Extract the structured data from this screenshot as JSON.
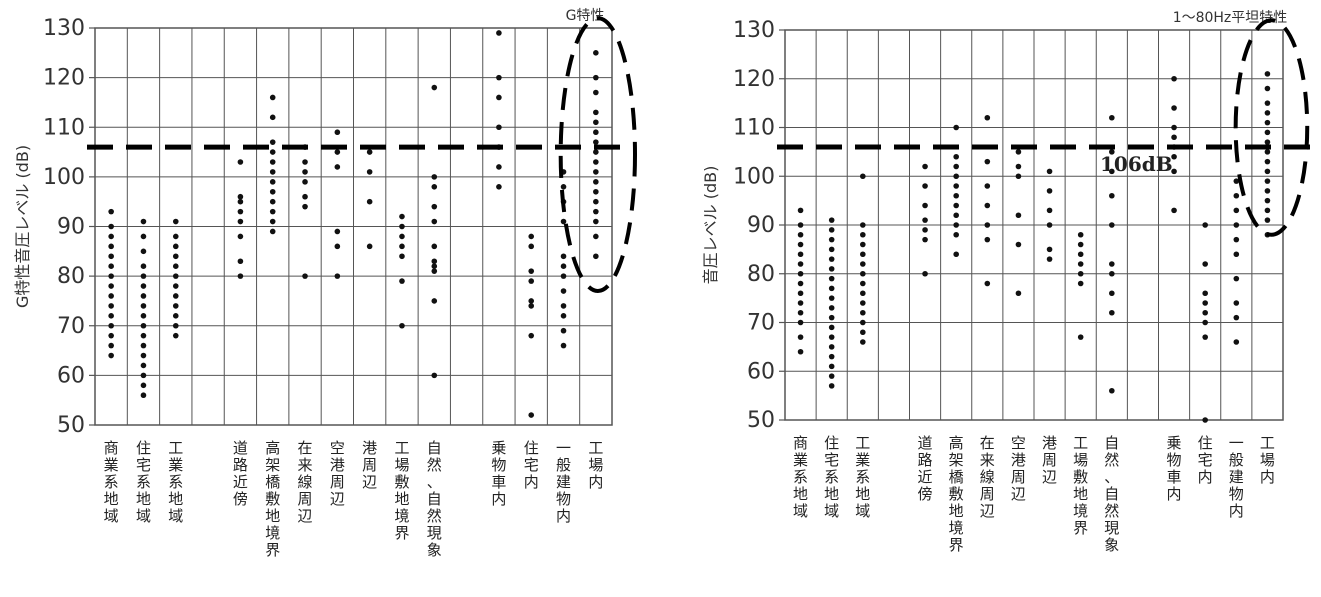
{
  "threshold_value": 106,
  "threshold_label": "106dB",
  "colors": {
    "grid": "#555555",
    "dot": "#111111",
    "dash": "#000000"
  },
  "chart_data": [
    {
      "type": "scatter",
      "title": "G特性",
      "ylabel": "G特性音圧レベル (dB)",
      "ylim": [
        50,
        130
      ],
      "yticks": [
        50,
        60,
        70,
        80,
        90,
        100,
        110,
        120,
        130
      ],
      "grid": true,
      "highlight_category": "工場内",
      "categories": [
        "商業系地域",
        "住宅系地域",
        "工業系地域",
        "",
        "道路近傍",
        "高架橋敷地境界",
        "在来線周辺",
        "空港周辺",
        "港周辺",
        "工場敷地境界",
        "自然、自然現象",
        "",
        "乗物車内",
        "住宅内",
        "一般建物内",
        "工場内"
      ],
      "points": [
        [
          64,
          66,
          68,
          70,
          72,
          74,
          76,
          78,
          80,
          82,
          84,
          86,
          88,
          90,
          93
        ],
        [
          56,
          58,
          60,
          62,
          64,
          66,
          68,
          70,
          72,
          74,
          76,
          78,
          80,
          82,
          85,
          88,
          91
        ],
        [
          68,
          70,
          72,
          74,
          76,
          78,
          80,
          82,
          84,
          86,
          88,
          91
        ],
        [],
        [
          80,
          83,
          88,
          91,
          93,
          95,
          96,
          103
        ],
        [
          89,
          91,
          93,
          95,
          97,
          99,
          101,
          103,
          105,
          107,
          112,
          116
        ],
        [
          80,
          94,
          96,
          99,
          101,
          103,
          106
        ],
        [
          80,
          86,
          89,
          102,
          105,
          109
        ],
        [
          86,
          95,
          101,
          105
        ],
        [
          70,
          79,
          84,
          86,
          88,
          90,
          92
        ],
        [
          60,
          75,
          81,
          82,
          83,
          86,
          91,
          94,
          98,
          100,
          118
        ],
        [],
        [
          98,
          102,
          106,
          110,
          116,
          120,
          129
        ],
        [
          52,
          68,
          74,
          75,
          79,
          81,
          86,
          88
        ],
        [
          66,
          69,
          72,
          74,
          77,
          80,
          82,
          84,
          91,
          95,
          98,
          101
        ],
        [
          84,
          88,
          91,
          93,
          95,
          97,
          99,
          101,
          103,
          105,
          107,
          109,
          111,
          113,
          117,
          120,
          125
        ]
      ]
    },
    {
      "type": "scatter",
      "title": "1～80Hz平坦特性",
      "ylabel": "音圧レベル (dB)",
      "ylim": [
        50,
        130
      ],
      "yticks": [
        50,
        60,
        70,
        80,
        90,
        100,
        110,
        120,
        130
      ],
      "grid": true,
      "highlight_category": "工場内",
      "categories": [
        "商業系地域",
        "住宅系地域",
        "工業系地域",
        "",
        "道路近傍",
        "高架橋敷地境界",
        "在来線周辺",
        "空港周辺",
        "港周辺",
        "工場敷地境界",
        "自然、自然現象",
        "",
        "乗物車内",
        "住宅内",
        "一般建物内",
        "工場内"
      ],
      "points": [
        [
          64,
          67,
          70,
          72,
          74,
          76,
          78,
          80,
          82,
          84,
          86,
          88,
          90,
          93
        ],
        [
          57,
          59,
          61,
          63,
          65,
          67,
          69,
          71,
          73,
          75,
          77,
          79,
          81,
          83,
          85,
          87,
          89,
          91
        ],
        [
          66,
          68,
          70,
          72,
          74,
          76,
          78,
          80,
          82,
          84,
          86,
          88,
          90,
          100
        ],
        [],
        [
          80,
          87,
          89,
          91,
          94,
          98,
          102
        ],
        [
          84,
          88,
          90,
          92,
          94,
          96,
          98,
          100,
          102,
          104,
          110
        ],
        [
          78,
          87,
          90,
          94,
          98,
          103,
          112
        ],
        [
          76,
          86,
          92,
          100,
          102,
          105
        ],
        [
          83,
          85,
          90,
          93,
          97,
          101
        ],
        [
          67,
          78,
          80,
          82,
          84,
          86,
          88
        ],
        [
          56,
          72,
          76,
          80,
          82,
          90,
          96,
          101,
          105,
          112
        ],
        [],
        [
          93,
          101,
          104,
          106,
          108,
          110,
          114,
          120
        ],
        [
          50,
          67,
          70,
          72,
          74,
          76,
          82,
          90
        ],
        [
          66,
          71,
          74,
          79,
          84,
          87,
          90,
          93,
          96,
          99
        ],
        [
          88,
          91,
          93,
          95,
          97,
          99,
          101,
          103,
          105,
          107,
          109,
          111,
          113,
          115,
          118,
          121
        ]
      ]
    }
  ]
}
